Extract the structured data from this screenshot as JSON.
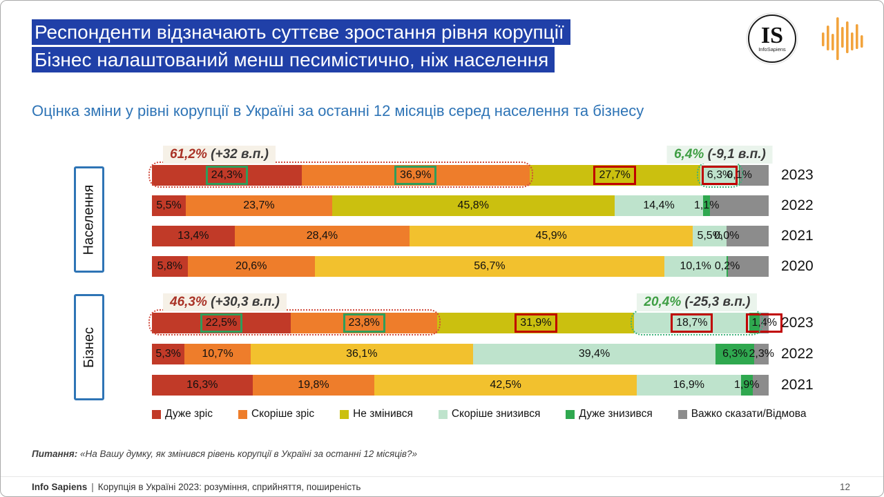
{
  "header": {
    "title_lines": [
      "Респонденти відзначають суттєве зростання рівня корупції",
      "Бізнес налаштований менш песимістично, ніж населення"
    ],
    "logo": {
      "initials": "IS",
      "name": "InfoSapiens"
    }
  },
  "icons": {
    "logo_mark": "is-monogram-icon",
    "brand_bars": "equalizer-bars-icon"
  },
  "colors": {
    "title_bg": "#2040A8",
    "subtitle_text": "#2E74B6",
    "strong_inc": "#C13A28",
    "inc": "#EE7D2B",
    "neutral": "#CBC00F",
    "neutral_gold": "#F2C12E",
    "dec": "#BEE3CC",
    "strong_dec": "#2FA84F",
    "dk": "#8C8C8C",
    "ann_inc_text": "#A93226",
    "ann_dec_text": "#3F9E44",
    "ann_delta_text": "#3A3A3A",
    "ann_inc_bg": "#F6F1E7",
    "ann_dec_bg": "#EAF4EC",
    "box_green": "#2E9E5B",
    "box_red": "#C00000",
    "outline_red": "#D0483A",
    "outline_green": "#3CB37A",
    "group_box_border": "#2E74B5"
  },
  "chart_data": {
    "type": "bar",
    "variant": "horizontal-stacked",
    "unit": "%",
    "title": "Оцінка зміни у рівні корупції в Україні за останні 12 місяців серед населення та бізнесу",
    "legend": [
      {
        "label": "Дуже зріс",
        "key": "strong_inc"
      },
      {
        "label": "Скоріше зріс",
        "key": "inc"
      },
      {
        "label": "Не змінився",
        "key": "neutral"
      },
      {
        "label": "Скоріше знизився",
        "key": "dec"
      },
      {
        "label": "Дуже знизився",
        "key": "strong_dec"
      },
      {
        "label": "Важко сказати/Відмова",
        "key": "dk"
      }
    ],
    "groups": [
      {
        "label": "Населення",
        "annotation_inc": {
          "pct": "61,2%",
          "delta": "(+32 в.п.)"
        },
        "annotation_dec": {
          "pct": "6,4%",
          "delta": "(-9,1 в.п.)"
        },
        "rows": [
          {
            "year": "2023",
            "segments": [
              {
                "v": 24.3,
                "t": "24,3%",
                "k": "strong_inc",
                "box": "green"
              },
              {
                "v": 36.9,
                "t": "36,9%",
                "k": "inc",
                "box": "green"
              },
              {
                "v": 27.7,
                "t": "27,7%",
                "k": "neutral",
                "box": "red"
              },
              {
                "v": 6.3,
                "t": "6,3%",
                "k": "dec",
                "box": "red"
              },
              {
                "v": 0.1,
                "t": "0,1%",
                "k": "strong_dec"
              },
              {
                "v": 4.7,
                "t": "",
                "k": "dk"
              }
            ],
            "outlines": [
              {
                "start": 0,
                "span": 61.2,
                "style": "red"
              },
              {
                "start": 88.9,
                "span": 6.4,
                "style": "green"
              }
            ]
          },
          {
            "year": "2022",
            "segments": [
              {
                "v": 5.5,
                "t": "5,5%",
                "k": "strong_inc"
              },
              {
                "v": 23.7,
                "t": "23,7%",
                "k": "inc"
              },
              {
                "v": 45.8,
                "t": "45,8%",
                "k": "neutral"
              },
              {
                "v": 14.4,
                "t": "14,4%",
                "k": "dec"
              },
              {
                "v": 1.1,
                "t": "1,1%",
                "k": "strong_dec"
              },
              {
                "v": 9.5,
                "t": "",
                "k": "dk"
              }
            ]
          },
          {
            "year": "2021",
            "segments": [
              {
                "v": 13.4,
                "t": "13,4%",
                "k": "strong_inc"
              },
              {
                "v": 28.4,
                "t": "28,4%",
                "k": "inc"
              },
              {
                "v": 45.9,
                "t": "45,9%",
                "k": "neutral_gold"
              },
              {
                "v": 5.5,
                "t": "5,5%",
                "k": "dec"
              },
              {
                "v": 0.0,
                "t": "0,0%",
                "k": "strong_dec"
              },
              {
                "v": 6.8,
                "t": "",
                "k": "dk"
              }
            ]
          },
          {
            "year": "2020",
            "segments": [
              {
                "v": 5.8,
                "t": "5,8%",
                "k": "strong_inc"
              },
              {
                "v": 20.6,
                "t": "20,6%",
                "k": "inc"
              },
              {
                "v": 56.7,
                "t": "56,7%",
                "k": "neutral_gold"
              },
              {
                "v": 10.1,
                "t": "10,1%",
                "k": "dec"
              },
              {
                "v": 0.2,
                "t": "0,2%",
                "k": "strong_dec"
              },
              {
                "v": 6.6,
                "t": "",
                "k": "dk"
              }
            ]
          }
        ]
      },
      {
        "label": "Бізнес",
        "annotation_inc": {
          "pct": "46,3%",
          "delta": "(+30,3 в.п.)"
        },
        "annotation_dec": {
          "pct": "20,4%",
          "delta": "(-25,3 в.п.)"
        },
        "rows": [
          {
            "year": "2023",
            "segments": [
              {
                "v": 22.5,
                "t": "22,5%",
                "k": "strong_inc",
                "box": "green"
              },
              {
                "v": 23.8,
                "t": "23,8%",
                "k": "inc",
                "box": "green"
              },
              {
                "v": 31.9,
                "t": "31,9%",
                "k": "neutral",
                "box": "red"
              },
              {
                "v": 18.7,
                "t": "18,7%",
                "k": "dec",
                "box": "red"
              },
              {
                "v": 1.7,
                "t": "",
                "k": "strong_dec"
              },
              {
                "v": 1.4,
                "t": "1,4%",
                "k": "dk",
                "box": "red"
              }
            ],
            "outlines": [
              {
                "start": 0,
                "span": 46.3,
                "style": "red"
              },
              {
                "start": 78.2,
                "span": 20.4,
                "style": "green"
              }
            ]
          },
          {
            "year": "2022",
            "segments": [
              {
                "v": 5.3,
                "t": "5,3%",
                "k": "strong_inc"
              },
              {
                "v": 10.7,
                "t": "10,7%",
                "k": "inc"
              },
              {
                "v": 36.1,
                "t": "36,1%",
                "k": "neutral_gold"
              },
              {
                "v": 39.4,
                "t": "39,4%",
                "k": "dec"
              },
              {
                "v": 6.3,
                "t": "6,3%",
                "k": "strong_dec"
              },
              {
                "v": 2.3,
                "t": "2,3%",
                "k": "dk"
              }
            ]
          },
          {
            "year": "2021",
            "segments": [
              {
                "v": 16.3,
                "t": "16,3%",
                "k": "strong_inc"
              },
              {
                "v": 19.8,
                "t": "19,8%",
                "k": "inc"
              },
              {
                "v": 42.5,
                "t": "42,5%",
                "k": "neutral_gold"
              },
              {
                "v": 16.9,
                "t": "16,9%",
                "k": "dec"
              },
              {
                "v": 1.9,
                "t": "1,9%",
                "k": "strong_dec"
              },
              {
                "v": 2.6,
                "t": "",
                "k": "dk"
              }
            ]
          }
        ]
      }
    ]
  },
  "question": {
    "label": "Питання:",
    "text": "«На Вашу думку, як змінився рівень корупції в Україні за останні 12 місяців?»"
  },
  "footer": {
    "brand": "Info Sapiens",
    "separator": "|",
    "title": "Корупція в Україні 2023: розуміння, сприйняття, поширеність",
    "page": "12"
  }
}
